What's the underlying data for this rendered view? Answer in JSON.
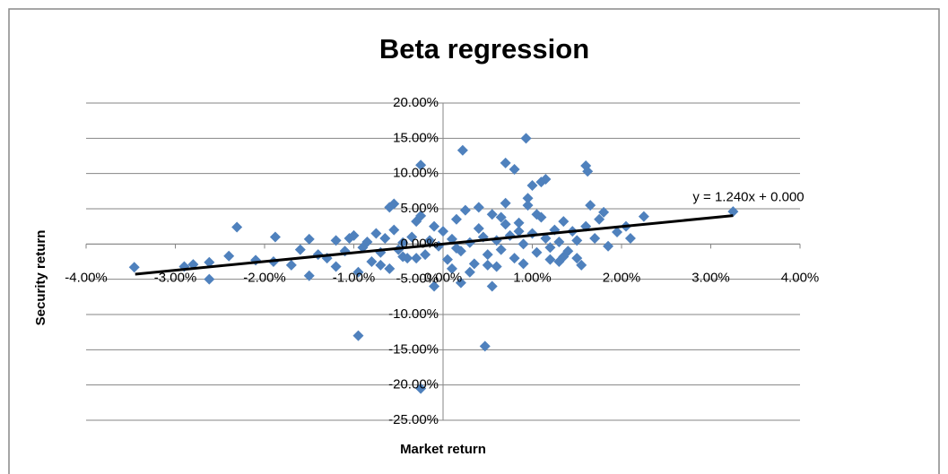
{
  "chart_data": {
    "type": "scatter",
    "title": "Beta regression",
    "x_label": "Market return",
    "y_label": "Security return",
    "color": "#4f81bd",
    "x": [
      -3.46,
      -2.9,
      -2.8,
      -2.62,
      -2.62,
      -2.31,
      -2.4,
      -1.88,
      -2.1,
      -1.9,
      -1.7,
      -1.5,
      -1.5,
      -1.3,
      -0.95,
      -0.25,
      0.22,
      -0.25,
      0.47,
      0.93,
      0.7,
      0.8,
      1.6,
      1.62,
      1.1,
      1.15,
      1.0,
      3.25,
      2.25,
      2.1,
      2.05,
      1.95,
      1.8,
      1.65,
      1.85,
      0.95,
      0.95,
      0.7,
      -0.55,
      -0.6,
      -0.3,
      -0.1,
      0.55,
      0.2,
      0.5,
      1.55,
      1.5,
      1.3,
      -1.2,
      -1.1,
      -1.0,
      -0.9,
      -0.85,
      -0.8,
      -0.75,
      -0.7,
      -0.65,
      -0.6,
      -0.55,
      -0.5,
      -0.45,
      -0.4,
      -0.35,
      -0.3,
      -0.2,
      -0.15,
      -0.1,
      -0.05,
      0.0,
      0.05,
      0.1,
      0.15,
      0.2,
      0.25,
      0.3,
      0.35,
      0.4,
      0.45,
      0.5,
      0.55,
      0.6,
      0.65,
      0.7,
      0.75,
      0.8,
      0.85,
      0.9,
      1.0,
      1.05,
      1.1,
      1.15,
      1.2,
      1.25,
      1.3,
      1.35,
      1.4,
      1.45,
      1.5,
      1.6,
      1.7,
      1.75,
      -1.4,
      -1.6,
      -1.2,
      -0.95,
      -0.7,
      0.1,
      0.3,
      0.6,
      0.9,
      1.2,
      -1.05,
      -0.25,
      0.4,
      0.65,
      1.05,
      -0.45,
      0.15,
      0.85,
      1.35
    ],
    "values": [
      -3.3,
      -3.2,
      -2.9,
      -2.6,
      -5.0,
      2.4,
      -1.7,
      1.0,
      -2.3,
      -2.5,
      -3.0,
      0.7,
      -4.5,
      -2.0,
      -13.0,
      11.2,
      13.3,
      -20.5,
      -14.5,
      15.0,
      11.5,
      10.6,
      11.1,
      10.3,
      8.8,
      9.2,
      8.3,
      4.6,
      3.9,
      0.8,
      2.5,
      1.7,
      4.5,
      5.5,
      -0.3,
      6.5,
      5.5,
      5.8,
      5.7,
      5.2,
      -2.0,
      -6.0,
      -6.0,
      -5.5,
      -3.0,
      -3.0,
      -2.0,
      -2.5,
      0.5,
      -1.0,
      1.2,
      -0.5,
      0.3,
      -2.5,
      1.5,
      -1.2,
      0.8,
      -3.5,
      2.0,
      -0.8,
      0.2,
      -2.0,
      1.0,
      3.2,
      -1.5,
      0.5,
      2.5,
      -0.3,
      1.8,
      -2.2,
      0.7,
      3.5,
      -1.0,
      4.8,
      0.2,
      -2.8,
      2.2,
      1.0,
      -1.5,
      4.2,
      0.5,
      -0.8,
      2.8,
      1.2,
      -2.0,
      3.0,
      0.0,
      1.5,
      -1.2,
      3.8,
      0.8,
      -0.5,
      2.0,
      0.3,
      3.2,
      -1.0,
      1.8,
      0.5,
      2.5,
      0.8,
      3.5,
      -1.5,
      -0.8,
      -3.2,
      -4.0,
      -3.0,
      -3.5,
      -4.0,
      -3.2,
      -2.8,
      -2.2,
      0.8,
      4.0,
      5.2,
      3.8,
      4.2,
      -1.8,
      -0.6,
      1.8,
      -1.8
    ],
    "trendline": {
      "slope": 1.24,
      "intercept": 0,
      "x": [
        -3.45,
        3.25
      ],
      "label": "y = 1.240x + 0.000"
    },
    "xlim": [
      -4,
      4
    ],
    "xticks": [
      {
        "value": -4,
        "label": "-4.00%"
      },
      {
        "value": -3,
        "label": "-3.00%"
      },
      {
        "value": -2,
        "label": "-2.00%"
      },
      {
        "value": -1,
        "label": "-1.00%"
      },
      {
        "value": 0,
        "label": "0.00%"
      },
      {
        "value": 1,
        "label": "1.00%"
      },
      {
        "value": 2,
        "label": "2.00%"
      },
      {
        "value": 3,
        "label": "3.00%"
      },
      {
        "value": 4,
        "label": "4.00%"
      }
    ],
    "ylim": [
      -25,
      20
    ],
    "yticks": [
      {
        "value": 20,
        "label": "20.00%"
      },
      {
        "value": 15,
        "label": "15.00%"
      },
      {
        "value": 10,
        "label": "10.00%"
      },
      {
        "value": 5,
        "label": "5.00%"
      },
      {
        "value": 0,
        "label": "0.00%"
      },
      {
        "value": -5,
        "label": "-5.00%"
      },
      {
        "value": -10,
        "label": "-10.00%"
      },
      {
        "value": -15,
        "label": "-15.00%"
      },
      {
        "value": -20,
        "label": "-20.00%"
      },
      {
        "value": -25,
        "label": "-25.00%"
      }
    ],
    "grid": true
  }
}
